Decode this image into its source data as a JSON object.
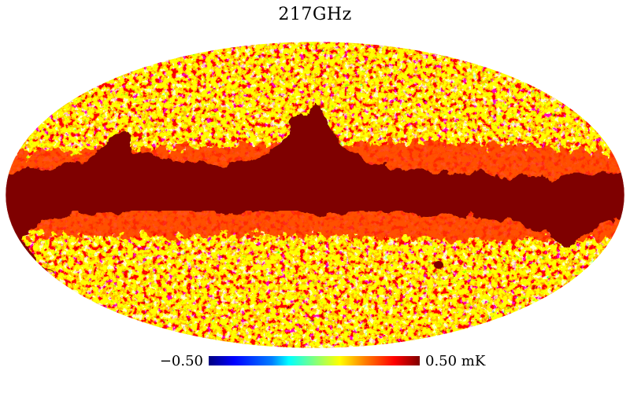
{
  "map": {
    "title": "217GHz",
    "projection": "mollweide",
    "region": "full sky",
    "colormap": "jet",
    "dominant_colors": {
      "saturated": "#7f0000",
      "high": "#ff0000",
      "mid_high": "#ffff00",
      "mid": "#7fff7f",
      "low": "#00ffff",
      "very_low": "#0000ff"
    }
  },
  "colorbar": {
    "min_label": "−0.50",
    "max_label": "0.50 mK",
    "min_value": -0.5,
    "max_value": 0.5,
    "unit": "mK"
  }
}
